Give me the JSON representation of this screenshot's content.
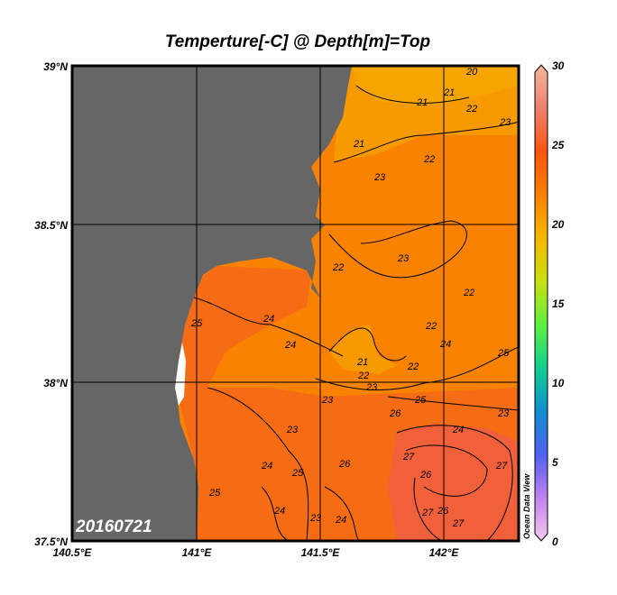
{
  "title": "Temperture[-C] @ Depth[m]=Top",
  "date_label": "20160721",
  "watermark": "Ocean Data View",
  "map": {
    "lon_range": [
      140.5,
      142.3
    ],
    "lat_range": [
      37.5,
      39.0
    ],
    "lon_ticks": [
      "140.5°E",
      "141°E",
      "141.5°E",
      "142°E"
    ],
    "lat_ticks": [
      "39°N",
      "38.5°N",
      "38°N",
      "37.5°N"
    ],
    "land_color": "#666666",
    "grid": true
  },
  "colorbar": {
    "min": 0,
    "max": 30,
    "ticks": [
      "30",
      "25",
      "20",
      "15",
      "10",
      "5",
      "0"
    ],
    "colors": [
      "#f8c8f0",
      "#c080f0",
      "#5060f0",
      "#1090d0",
      "#10d090",
      "#60f040",
      "#c8e010",
      "#f8b800",
      "#fb8000",
      "#fa5510",
      "#f08070",
      "#f4b8a0"
    ]
  },
  "contour_labels": [
    "20",
    "21",
    "21",
    "22",
    "23",
    "21",
    "22",
    "23",
    "22",
    "23",
    "22",
    "25",
    "24",
    "24",
    "22",
    "21",
    "22",
    "23",
    "22",
    "24",
    "25",
    "25",
    "26",
    "24",
    "23",
    "23",
    "23",
    "24",
    "25",
    "26",
    "27",
    "26",
    "27",
    "27",
    "27",
    "26",
    "25",
    "24",
    "23",
    "24"
  ]
}
